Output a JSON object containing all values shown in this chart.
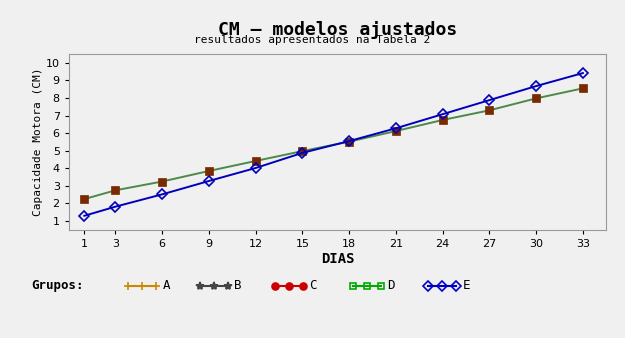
{
  "title": "CM – modelos ajustados",
  "subtitle": "resultados apresentados na Tabela 2",
  "xlabel": "DIAS",
  "ylabel": "Capacidade Motora (CM)",
  "days": [
    1,
    3,
    6,
    9,
    12,
    15,
    18,
    21,
    24,
    27,
    30,
    33
  ],
  "group_ABCD": [
    2.25,
    2.75,
    3.25,
    3.85,
    4.42,
    4.98,
    5.52,
    6.12,
    6.75,
    7.3,
    7.98,
    8.55
  ],
  "group_E": [
    1.3,
    1.82,
    2.52,
    3.28,
    4.02,
    4.88,
    5.55,
    6.28,
    7.08,
    7.88,
    8.68,
    9.42
  ],
  "color_ABCD_line": "#4a8a4a",
  "color_ABCD_marker": "#7a2a00",
  "color_E_line": "#0000bb",
  "color_E_marker": "#0000bb",
  "color_A_legend": "#cc8800",
  "color_B_legend": "#444444",
  "color_C_legend": "#cc0000",
  "color_D_legend": "#00aa00",
  "color_E_legend": "#0000cc",
  "ylim": [
    0.5,
    10.5
  ],
  "yticks": [
    1,
    2,
    3,
    4,
    5,
    6,
    7,
    8,
    9,
    10
  ],
  "bg_color": "#f0f0f0",
  "title_fontsize": 13,
  "subtitle_fontsize": 8,
  "axis_label_fontsize": 10,
  "tick_fontsize": 8
}
